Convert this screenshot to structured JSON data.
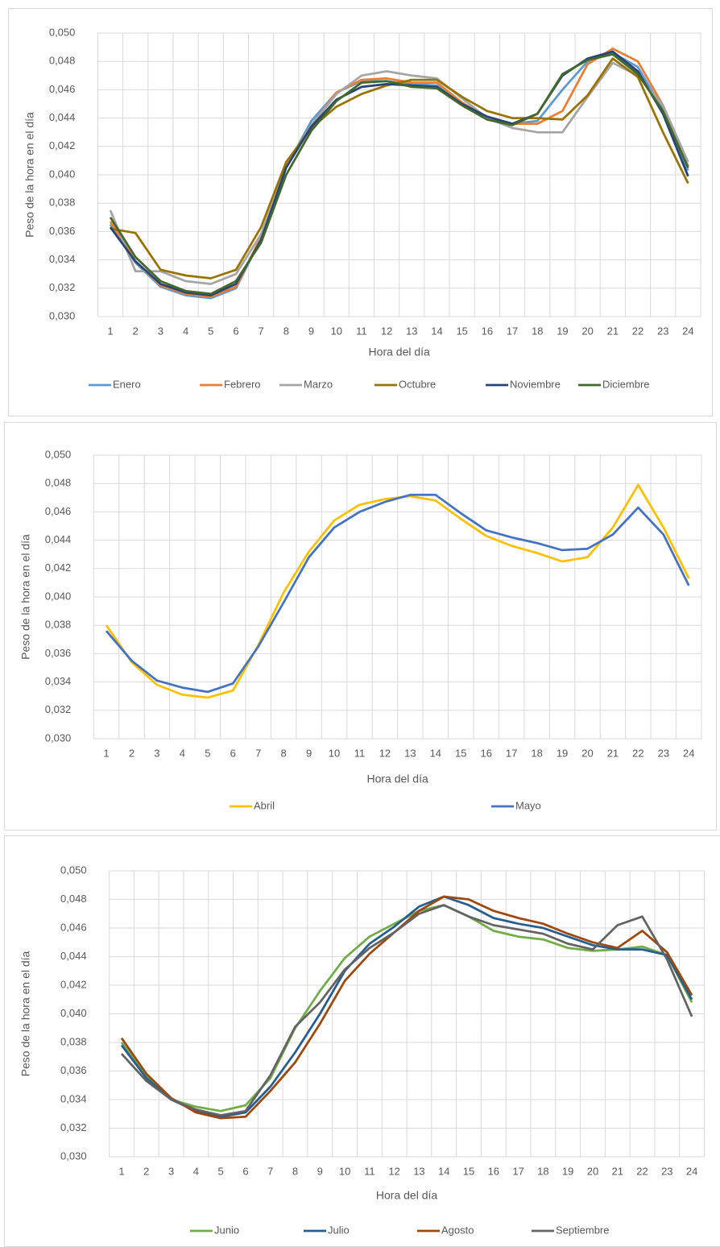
{
  "chart_data": [
    {
      "type": "line",
      "y_label": "Peso de la hora en el día",
      "x_label": "Hora del día",
      "categories": [
        "1",
        "2",
        "3",
        "4",
        "5",
        "6",
        "7",
        "8",
        "9",
        "10",
        "11",
        "12",
        "13",
        "14",
        "15",
        "16",
        "17",
        "18",
        "19",
        "20",
        "21",
        "22",
        "23",
        "24"
      ],
      "ylim": [
        0.03,
        0.05
      ],
      "yticks": [
        {
          "value": 0.03,
          "label": "0,030"
        },
        {
          "value": 0.032,
          "label": "0,032"
        },
        {
          "value": 0.034,
          "label": "0,034"
        },
        {
          "value": 0.036,
          "label": "0,036"
        },
        {
          "value": 0.038,
          "label": "0,038"
        },
        {
          "value": 0.04,
          "label": "0,040"
        },
        {
          "value": 0.042,
          "label": "0,042"
        },
        {
          "value": 0.044,
          "label": "0,044"
        },
        {
          "value": 0.046,
          "label": "0,046"
        },
        {
          "value": 0.048,
          "label": "0,048"
        },
        {
          "value": 0.05,
          "label": "0,050"
        }
      ],
      "grid": true,
      "legend": "bottom",
      "series": [
        {
          "name": "Enero",
          "color": "#5b9bd5",
          "values": [
            0.0365,
            0.0338,
            0.0321,
            0.0315,
            0.0313,
            0.032,
            0.0355,
            0.0405,
            0.0438,
            0.0458,
            0.0466,
            0.0466,
            0.0464,
            0.0463,
            0.045,
            0.0441,
            0.0436,
            0.0438,
            0.046,
            0.048,
            0.0486,
            0.0476,
            0.0446,
            0.0403
          ]
        },
        {
          "name": "Febrero",
          "color": "#ed7d31",
          "values": [
            0.0367,
            0.0339,
            0.0322,
            0.0316,
            0.0314,
            0.0321,
            0.0356,
            0.0406,
            0.0435,
            0.0458,
            0.0467,
            0.0468,
            0.0465,
            0.0465,
            0.0451,
            0.044,
            0.0436,
            0.0436,
            0.0445,
            0.0478,
            0.0489,
            0.048,
            0.0449,
            0.0406
          ]
        },
        {
          "name": "Marzo",
          "color": "#a5a5a5",
          "values": [
            0.0375,
            0.0332,
            0.0332,
            0.0325,
            0.0323,
            0.033,
            0.0358,
            0.0405,
            0.0435,
            0.0457,
            0.047,
            0.0473,
            0.047,
            0.0468,
            0.0454,
            0.044,
            0.0433,
            0.043,
            0.043,
            0.0455,
            0.0479,
            0.047,
            0.0449,
            0.0409
          ]
        },
        {
          "name": "Octubre",
          "color": "#997300",
          "values": [
            0.0362,
            0.0359,
            0.0333,
            0.0329,
            0.0327,
            0.0333,
            0.0363,
            0.0409,
            0.0433,
            0.0448,
            0.0457,
            0.0463,
            0.0467,
            0.0467,
            0.0455,
            0.0445,
            0.044,
            0.044,
            0.0439,
            0.0456,
            0.0482,
            0.0469,
            0.043,
            0.0394
          ]
        },
        {
          "name": "Noviembre",
          "color": "#264478",
          "values": [
            0.0363,
            0.0339,
            0.0323,
            0.0317,
            0.0315,
            0.0323,
            0.0354,
            0.0405,
            0.0434,
            0.0453,
            0.0462,
            0.0464,
            0.0463,
            0.0462,
            0.045,
            0.0441,
            0.0436,
            0.0443,
            0.047,
            0.0482,
            0.0487,
            0.0473,
            0.0443,
            0.0399
          ]
        },
        {
          "name": "Diciembre",
          "color": "#43682b",
          "values": [
            0.037,
            0.0342,
            0.0325,
            0.0318,
            0.0316,
            0.0325,
            0.0352,
            0.04,
            0.0431,
            0.0452,
            0.0465,
            0.0466,
            0.0462,
            0.0461,
            0.0449,
            0.0439,
            0.0435,
            0.0443,
            0.0471,
            0.0481,
            0.0485,
            0.0471,
            0.0445,
            0.0405
          ]
        }
      ]
    },
    {
      "type": "line",
      "y_label": "Peso de la hora en el día",
      "x_label": "Hora del día",
      "categories": [
        "1",
        "2",
        "3",
        "4",
        "5",
        "6",
        "7",
        "8",
        "9",
        "10",
        "11",
        "12",
        "13",
        "14",
        "15",
        "16",
        "17",
        "18",
        "19",
        "20",
        "21",
        "22",
        "23",
        "24"
      ],
      "ylim": [
        0.03,
        0.05
      ],
      "yticks": [
        {
          "value": 0.03,
          "label": "0,030"
        },
        {
          "value": 0.032,
          "label": "0,032"
        },
        {
          "value": 0.034,
          "label": "0,034"
        },
        {
          "value": 0.036,
          "label": "0,036"
        },
        {
          "value": 0.038,
          "label": "0,038"
        },
        {
          "value": 0.04,
          "label": "0,040"
        },
        {
          "value": 0.042,
          "label": "0,042"
        },
        {
          "value": 0.044,
          "label": "0,044"
        },
        {
          "value": 0.046,
          "label": "0,046"
        },
        {
          "value": 0.048,
          "label": "0,048"
        },
        {
          "value": 0.05,
          "label": "0,050"
        }
      ],
      "grid": true,
      "legend": "bottom",
      "series": [
        {
          "name": "Abril",
          "color": "#ffc000",
          "values": [
            0.038,
            0.0354,
            0.0338,
            0.0331,
            0.0329,
            0.0334,
            0.0366,
            0.0403,
            0.0432,
            0.0454,
            0.0465,
            0.0469,
            0.0471,
            0.0468,
            0.0455,
            0.0443,
            0.0436,
            0.0431,
            0.0425,
            0.0428,
            0.0449,
            0.0479,
            0.0449,
            0.0413
          ]
        },
        {
          "name": "Mayo",
          "color": "#4472c4",
          "values": [
            0.0376,
            0.0355,
            0.0341,
            0.0336,
            0.0333,
            0.0339,
            0.0365,
            0.0396,
            0.0428,
            0.0449,
            0.046,
            0.0467,
            0.0472,
            0.0472,
            0.0459,
            0.0447,
            0.0442,
            0.0438,
            0.0433,
            0.0434,
            0.0444,
            0.0463,
            0.0444,
            0.0408
          ]
        }
      ]
    },
    {
      "type": "line",
      "y_label": "Peso de la hora en el día",
      "x_label": "Hora del día",
      "categories": [
        "1",
        "2",
        "3",
        "4",
        "5",
        "6",
        "7",
        "8",
        "9",
        "10",
        "11",
        "12",
        "13",
        "14",
        "15",
        "16",
        "17",
        "18",
        "19",
        "20",
        "21",
        "22",
        "23",
        "24"
      ],
      "ylim": [
        0.03,
        0.05
      ],
      "yticks": [
        {
          "value": 0.03,
          "label": "0,030"
        },
        {
          "value": 0.032,
          "label": "0,032"
        },
        {
          "value": 0.034,
          "label": "0,034"
        },
        {
          "value": 0.036,
          "label": "0,036"
        },
        {
          "value": 0.038,
          "label": "0,038"
        },
        {
          "value": 0.04,
          "label": "0,040"
        },
        {
          "value": 0.042,
          "label": "0,042"
        },
        {
          "value": 0.044,
          "label": "0,044"
        },
        {
          "value": 0.046,
          "label": "0,046"
        },
        {
          "value": 0.048,
          "label": "0,048"
        },
        {
          "value": 0.05,
          "label": "0,050"
        }
      ],
      "grid": true,
      "legend": "bottom",
      "series": [
        {
          "name": "Junio",
          "color": "#70ad47",
          "values": [
            0.038,
            0.0356,
            0.034,
            0.0335,
            0.0332,
            0.0336,
            0.0355,
            0.039,
            0.0416,
            0.0439,
            0.0454,
            0.0463,
            0.0472,
            0.0476,
            0.0468,
            0.0458,
            0.0454,
            0.0452,
            0.0446,
            0.0444,
            0.0445,
            0.0447,
            0.0441,
            0.0408
          ]
        },
        {
          "name": "Julio",
          "color": "#255e91",
          "values": [
            0.0378,
            0.0355,
            0.034,
            0.0332,
            0.0328,
            0.0331,
            0.0349,
            0.0373,
            0.04,
            0.043,
            0.0449,
            0.0461,
            0.0475,
            0.0482,
            0.0476,
            0.0467,
            0.0463,
            0.046,
            0.0454,
            0.0448,
            0.0445,
            0.0445,
            0.0441,
            0.041
          ]
        },
        {
          "name": "Agosto",
          "color": "#9e480e",
          "values": [
            0.0383,
            0.0358,
            0.0341,
            0.0331,
            0.0327,
            0.0328,
            0.0346,
            0.0366,
            0.0393,
            0.0423,
            0.0442,
            0.0457,
            0.0472,
            0.0482,
            0.048,
            0.0472,
            0.0467,
            0.0463,
            0.0456,
            0.045,
            0.0446,
            0.0458,
            0.0443,
            0.0413
          ]
        },
        {
          "name": "Septiembre",
          "color": "#636363",
          "values": [
            0.0372,
            0.0353,
            0.034,
            0.0333,
            0.0329,
            0.0332,
            0.0357,
            0.0391,
            0.0408,
            0.0431,
            0.0446,
            0.0457,
            0.047,
            0.0476,
            0.0468,
            0.0462,
            0.0459,
            0.0456,
            0.0449,
            0.0445,
            0.0462,
            0.0468,
            0.0438,
            0.0398
          ]
        }
      ]
    }
  ]
}
